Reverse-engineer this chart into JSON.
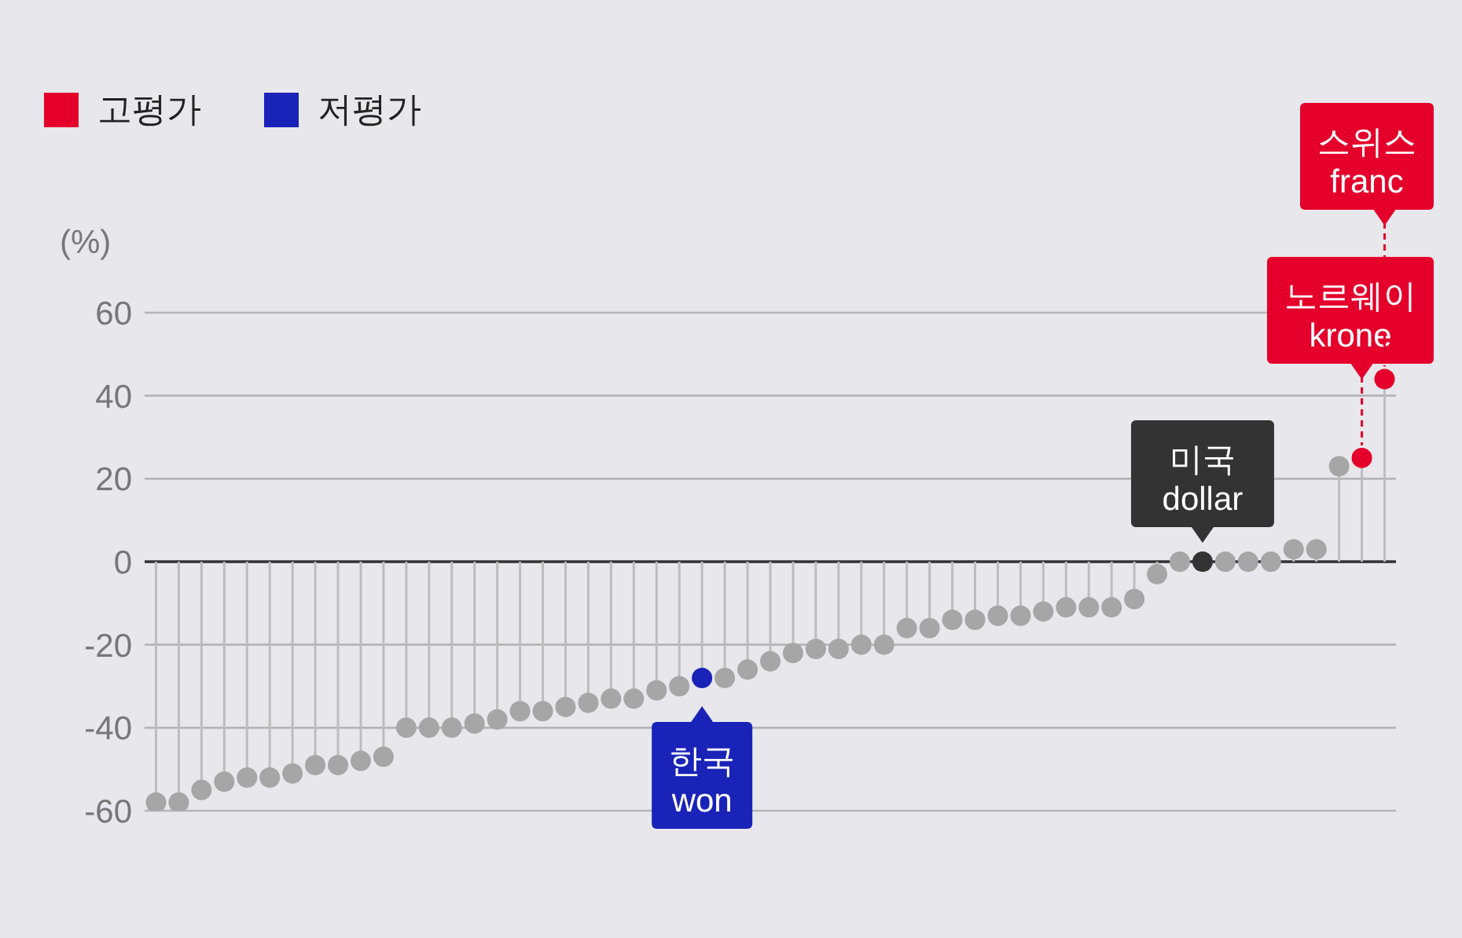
{
  "chart_data": {
    "type": "lollipop",
    "ylabel": "(%)",
    "legend": "top left",
    "tick_labels": "y",
    "grid": "y",
    "marker": "circle",
    "categories": [
      null,
      null,
      null,
      null,
      null,
      null,
      null,
      null,
      null,
      null,
      null,
      null,
      null,
      null,
      null,
      null,
      null,
      null,
      null,
      null,
      null,
      null,
      null,
      null,
      null,
      null,
      null,
      null,
      null,
      null,
      null,
      null,
      null,
      null,
      null,
      null,
      null,
      null,
      null,
      null,
      null,
      null,
      null,
      null,
      null,
      null,
      null,
      null,
      null,
      null,
      null,
      null,
      null,
      null,
      null
    ],
    "ylim": [
      -60,
      60
    ],
    "yticks": [
      -60,
      -40,
      -20,
      0,
      20,
      40,
      60
    ],
    "ref_lines": [
      {
        "axis": "y",
        "value": 0,
        "color": "#333333"
      }
    ],
    "series": [
      {
        "color": "#a6a6a6",
        "values": [
          -58,
          -58,
          -55,
          -53,
          -52,
          -52,
          -51,
          -49,
          -49,
          -48,
          -47,
          -40,
          -40,
          -40,
          -39,
          -38,
          -36,
          -36,
          -35,
          -34,
          -33,
          -33,
          -31,
          -30,
          null,
          -28,
          -26,
          -24,
          -22,
          -21,
          -21,
          -20,
          -20,
          -16,
          -16,
          -14,
          -14,
          -13,
          -13,
          -12,
          -11,
          -11,
          -11,
          -9,
          -3,
          0,
          null,
          0,
          0,
          0,
          3,
          3,
          23,
          null,
          null
        ]
      },
      {
        "name": "고평가",
        "color": "#e4002b",
        "values": [
          null,
          null,
          null,
          null,
          null,
          null,
          null,
          null,
          null,
          null,
          null,
          null,
          null,
          null,
          null,
          null,
          null,
          null,
          null,
          null,
          null,
          null,
          null,
          null,
          null,
          null,
          null,
          null,
          null,
          null,
          null,
          null,
          null,
          null,
          null,
          null,
          null,
          null,
          null,
          null,
          null,
          null,
          null,
          null,
          null,
          null,
          null,
          null,
          null,
          null,
          null,
          null,
          null,
          25,
          44
        ]
      },
      {
        "name": "저평가",
        "color": "#1a23b8",
        "values": [
          null,
          null,
          null,
          null,
          null,
          null,
          null,
          null,
          null,
          null,
          null,
          null,
          null,
          null,
          null,
          null,
          null,
          null,
          null,
          null,
          null,
          null,
          null,
          null,
          -28,
          null,
          null,
          null,
          null,
          null,
          null,
          null,
          null,
          null,
          null,
          null,
          null,
          null,
          null,
          null,
          null,
          null,
          null,
          null,
          null,
          null,
          null,
          null,
          null,
          null,
          null,
          null,
          null,
          null,
          null
        ]
      },
      {
        "color": "#333333",
        "values": [
          null,
          null,
          null,
          null,
          null,
          null,
          null,
          null,
          null,
          null,
          null,
          null,
          null,
          null,
          null,
          null,
          null,
          null,
          null,
          null,
          null,
          null,
          null,
          null,
          null,
          null,
          null,
          null,
          null,
          null,
          null,
          null,
          null,
          null,
          null,
          null,
          null,
          null,
          null,
          null,
          null,
          null,
          null,
          null,
          null,
          null,
          0,
          null,
          null,
          null,
          null,
          null,
          null,
          null,
          null
        ]
      }
    ],
    "annotations": [
      {
        "text": "한국\nwon",
        "y": -28
      },
      {
        "text": "미국\ndollar",
        "y": 0
      },
      "노르웨이\nkrone",
      "스위스\nfranc"
    ]
  }
}
